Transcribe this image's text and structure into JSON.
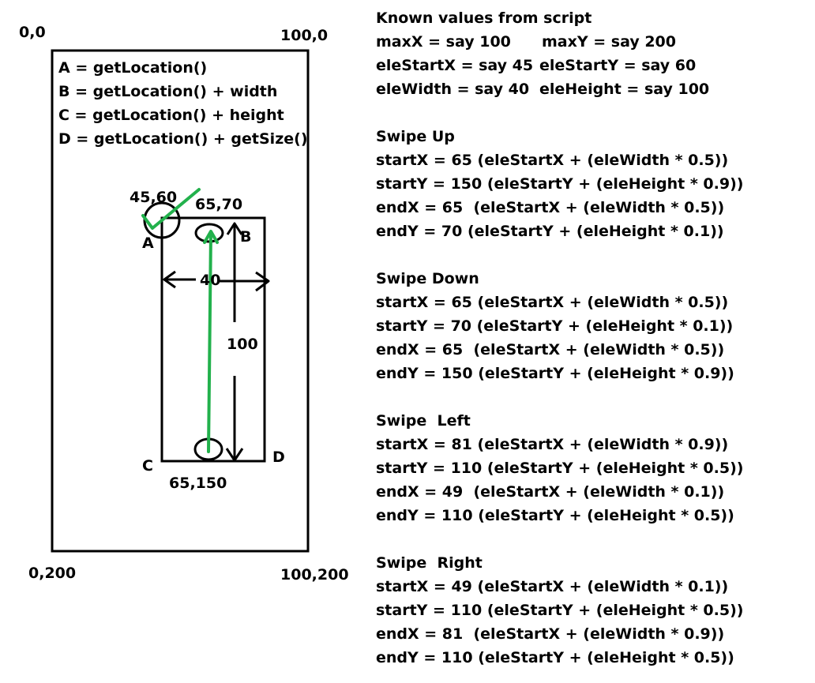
{
  "corners": {
    "top_left": "0,0",
    "top_right": "100,0",
    "bottom_left": "0,200",
    "bottom_right": "100,200"
  },
  "definitions": [
    "A = getLocation()",
    "B = getLocation() + width",
    "C =  getLocation() + height",
    "D =  getLocation() + getSize()"
  ],
  "element": {
    "start_point": "45,60",
    "swipe_top_point": "65,70",
    "swipe_bottom_point": "65,150",
    "corner_a": "A",
    "corner_b": "B",
    "corner_c": "C",
    "corner_d": "D",
    "width_label": "40",
    "height_label": "100"
  },
  "known_values": {
    "title": "Known values from script",
    "rows": [
      [
        "maxX = say 100",
        "maxY = say 200"
      ],
      [
        "eleStartX = say 45",
        "eleStartY = say 60"
      ],
      [
        "eleWidth = say 40",
        "eleHeight = say 100"
      ]
    ]
  },
  "swipes": [
    {
      "title": "Swipe Up",
      "lines": [
        "startX = 65 (eleStartX + (eleWidth * 0.5))",
        "startY = 150 (eleStartY + (eleHeight * 0.9))",
        "endX = 65  (eleStartX + (eleWidth * 0.5))",
        "endY = 70 (eleStartY + (eleHeight * 0.1))"
      ]
    },
    {
      "title": "Swipe Down",
      "lines": [
        "startX = 65 (eleStartX + (eleWidth * 0.5))",
        "startY = 70 (eleStartY + (eleHeight * 0.1))",
        "endX = 65  (eleStartX + (eleWidth * 0.5))",
        "endY = 150 (eleStartY + (eleHeight * 0.9))"
      ]
    },
    {
      "title": "Swipe  Left",
      "lines": [
        "startX = 81 (eleStartX + (eleWidth * 0.9))",
        "startY = 110 (eleStartY + (eleHeight * 0.5))",
        "endX = 49  (eleStartX + (eleWidth * 0.1))",
        "endY = 110 (eleStartY + (eleHeight * 0.5))"
      ]
    },
    {
      "title": "Swipe  Right",
      "lines": [
        "startX = 49 (eleStartX + (eleWidth * 0.1))",
        "startY = 110 (eleStartY + (eleHeight * 0.5))",
        "endX = 81  (eleStartX + (eleWidth * 0.9))",
        "endY = 110 (eleStartY + (eleHeight * 0.5))"
      ]
    }
  ],
  "colors": {
    "swipe_line": "#22b14c",
    "outline": "#000000"
  }
}
